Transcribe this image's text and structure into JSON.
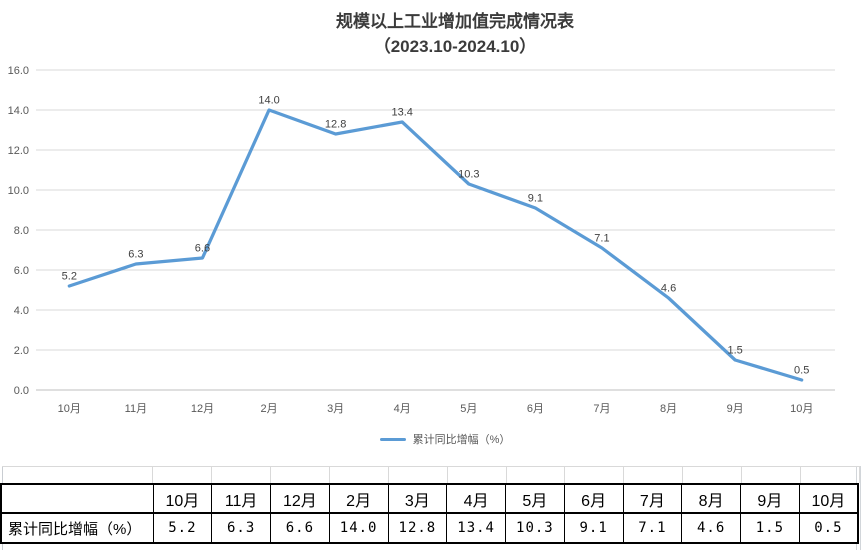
{
  "chart_data": {
    "type": "line",
    "title": "规模以上工业增加值完成情况表",
    "subtitle": "（2023.10-2024.10）",
    "categories": [
      "10月",
      "11月",
      "12月",
      "2月",
      "3月",
      "4月",
      "5月",
      "6月",
      "7月",
      "8月",
      "9月",
      "10月"
    ],
    "series": [
      {
        "name": "累计同比增幅（%）",
        "color": "#5B9BD5",
        "values": [
          5.2,
          6.3,
          6.6,
          14.0,
          12.8,
          13.4,
          10.3,
          9.1,
          7.1,
          4.6,
          1.5,
          0.5
        ]
      }
    ],
    "xlabel": "",
    "ylabel": "",
    "ylim": [
      0,
      16
    ],
    "ytick_step": 2,
    "ytick_format": "0.0",
    "yticks": [
      "0.0",
      "2.0",
      "4.0",
      "6.0",
      "8.0",
      "10.0",
      "12.0",
      "14.0",
      "16.0"
    ],
    "grid": true,
    "data_labels": true,
    "legend_position": "bottom"
  },
  "table": {
    "row_label": "累计同比增幅（%）",
    "columns": [
      "10月",
      "11月",
      "12月",
      "2月",
      "3月",
      "4月",
      "5月",
      "6月",
      "7月",
      "8月",
      "9月",
      "10月"
    ],
    "values": [
      "5.2",
      "6.3",
      "6.6",
      "14.0",
      "12.8",
      "13.4",
      "10.3",
      "9.1",
      "7.1",
      "4.6",
      "1.5",
      "0.5"
    ]
  },
  "colors": {
    "series_line": "#5B9BD5",
    "gridline": "#D9D9D9",
    "axis_line": "#BFBFBF",
    "axis_text": "#595959",
    "data_label_text": "#404040",
    "title_text": "#3B3B3B",
    "table_border": "#000000"
  }
}
